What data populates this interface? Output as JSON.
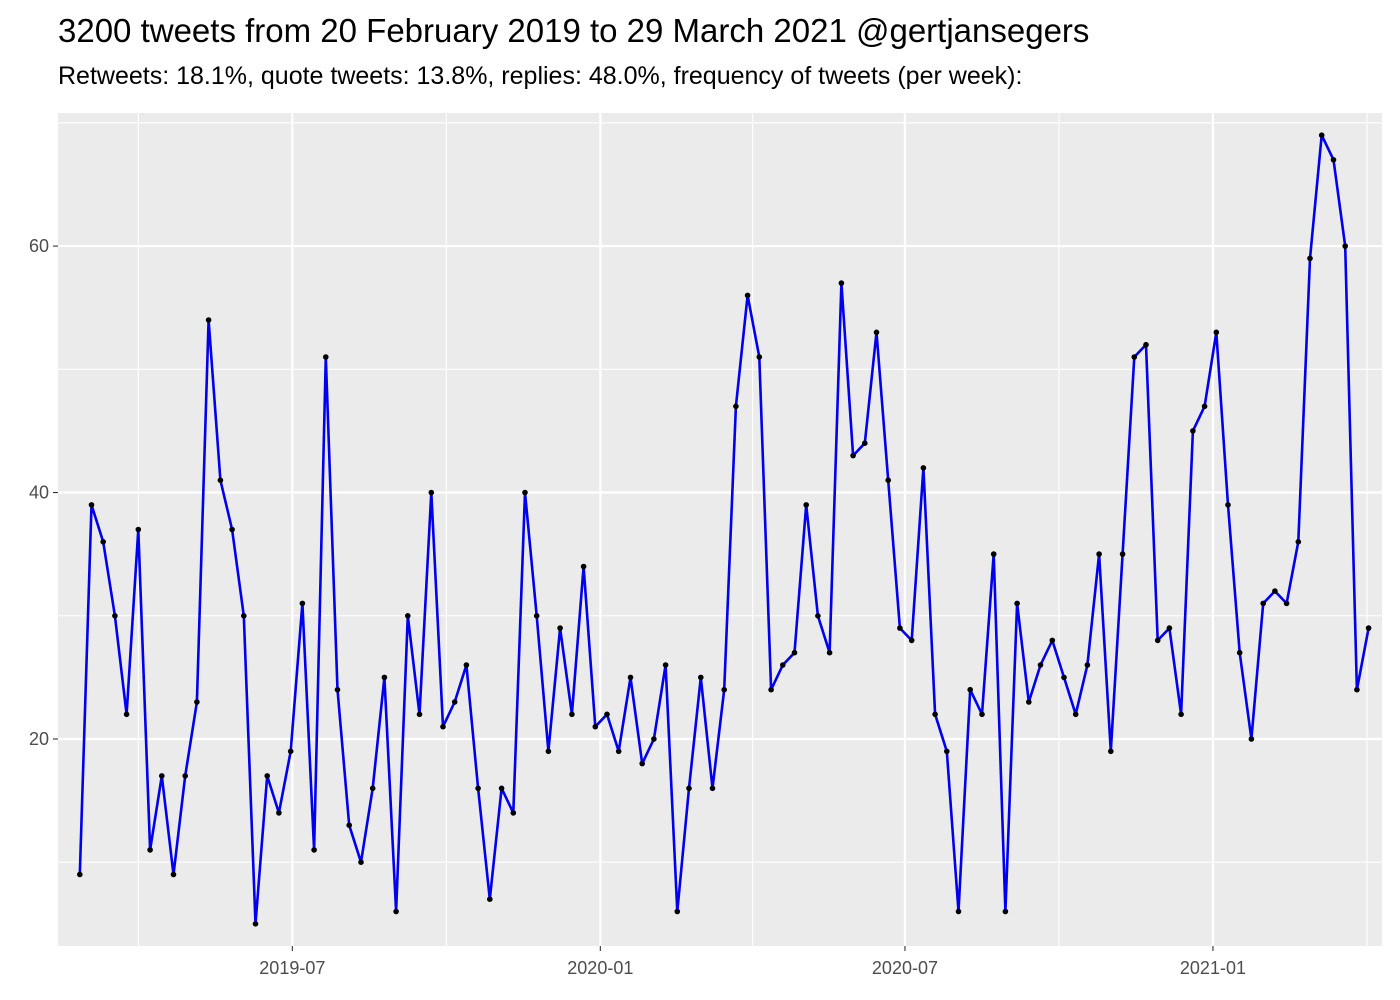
{
  "chart_data": {
    "type": "line",
    "title": "3200 tweets from 20 February 2019 to 29 March 2021 @gertjansegers",
    "subtitle": "Retweets: 18.1%, quote tweets: 13.8%, replies: 48.0%, frequency of tweets (per week):",
    "xlabel": "",
    "ylabel": "",
    "x_axis": {
      "type": "date",
      "range": [
        "2019-02-11",
        "2021-04-12"
      ],
      "ticks": [
        "2019-07-01",
        "2020-01-01",
        "2020-07-01",
        "2021-01-01"
      ],
      "tick_labels": [
        "2019-07",
        "2020-01",
        "2020-07",
        "2021-01"
      ]
    },
    "y_axis": {
      "range": [
        3.2,
        70.8
      ],
      "ticks": [
        20,
        40,
        60
      ],
      "tick_labels": [
        "20",
        "40",
        "60"
      ]
    },
    "grid": true,
    "line_color": "#0000ee",
    "point_color": "#000000",
    "panel_color": "#ebebeb",
    "series": [
      {
        "start": "2019-02-24",
        "step_days": 7,
        "values": [
          9,
          39,
          36,
          30,
          22,
          37,
          11,
          17,
          9,
          17,
          23,
          54,
          41,
          37,
          30,
          5,
          17,
          14,
          19,
          31,
          11,
          51,
          24,
          13,
          10,
          16,
          25,
          6,
          30,
          22,
          40,
          21,
          23,
          26,
          16,
          7,
          16,
          14,
          40,
          30,
          19,
          29,
          22,
          34,
          21,
          22,
          19,
          25,
          18,
          20,
          26,
          6,
          16,
          25,
          16,
          24,
          47,
          56,
          51,
          24,
          26,
          27,
          39,
          30,
          27,
          57,
          43,
          44,
          53,
          41,
          29,
          28,
          42,
          22,
          19,
          6,
          24,
          22,
          35,
          6,
          31,
          23,
          26,
          28,
          25,
          22,
          26,
          35,
          19,
          35,
          51,
          52,
          28,
          29,
          22,
          45,
          47,
          53,
          39,
          27,
          20,
          31,
          32,
          31,
          36,
          59,
          69,
          67,
          60,
          24,
          29
        ]
      }
    ]
  }
}
